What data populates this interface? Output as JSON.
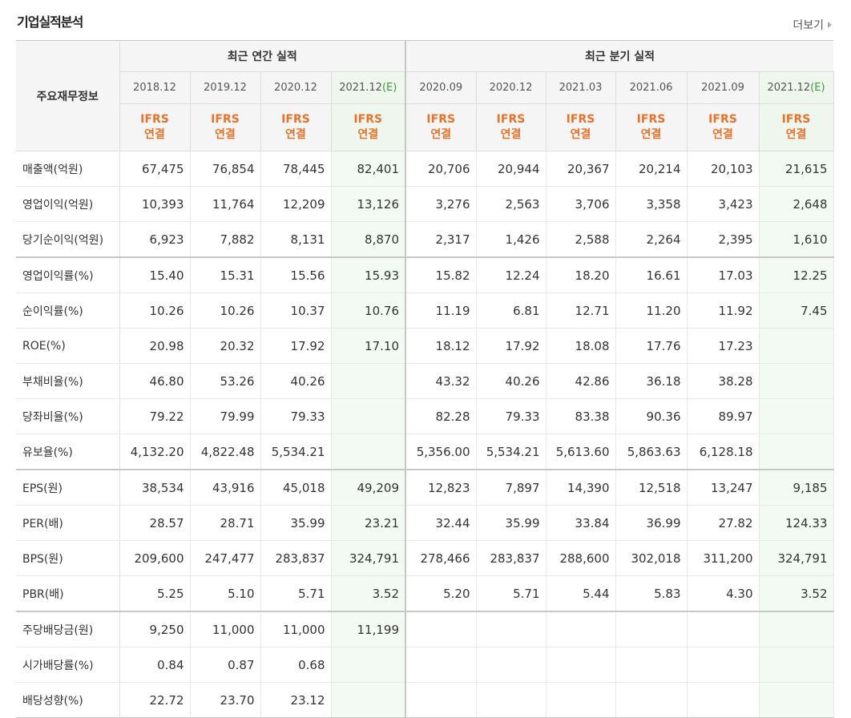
{
  "header": {
    "title": "기업실적분석",
    "more_label": "더보기"
  },
  "table": {
    "corner_label": "주요재무정보",
    "annual_group_label": "최근 연간 실적",
    "quarter_group_label": "최근 분기 실적",
    "columns": [
      {
        "period": "2018.12",
        "est": "",
        "ifrs1": "IFRS",
        "ifrs2": "연결"
      },
      {
        "period": "2019.12",
        "est": "",
        "ifrs1": "IFRS",
        "ifrs2": "연결"
      },
      {
        "period": "2020.12",
        "est": "",
        "ifrs1": "IFRS",
        "ifrs2": "연결"
      },
      {
        "period": "2021.12",
        "est": "(E)",
        "ifrs1": "IFRS",
        "ifrs2": "연결"
      },
      {
        "period": "2020.09",
        "est": "",
        "ifrs1": "IFRS",
        "ifrs2": "연결"
      },
      {
        "period": "2020.12",
        "est": "",
        "ifrs1": "IFRS",
        "ifrs2": "연결"
      },
      {
        "period": "2021.03",
        "est": "",
        "ifrs1": "IFRS",
        "ifrs2": "연결"
      },
      {
        "period": "2021.06",
        "est": "",
        "ifrs1": "IFRS",
        "ifrs2": "연결"
      },
      {
        "period": "2021.09",
        "est": "",
        "ifrs1": "IFRS",
        "ifrs2": "연결"
      },
      {
        "period": "2021.12",
        "est": "(E)",
        "ifrs1": "IFRS",
        "ifrs2": "연결"
      }
    ],
    "rows": [
      {
        "label": "매출액(억원)",
        "values": [
          "67,475",
          "76,854",
          "78,445",
          "82,401",
          "20,706",
          "20,944",
          "20,367",
          "20,214",
          "20,103",
          "21,615"
        ]
      },
      {
        "label": "영업이익(억원)",
        "values": [
          "10,393",
          "11,764",
          "12,209",
          "13,126",
          "3,276",
          "2,563",
          "3,706",
          "3,358",
          "3,423",
          "2,648"
        ]
      },
      {
        "label": "당기순이익(억원)",
        "values": [
          "6,923",
          "7,882",
          "8,131",
          "8,870",
          "2,317",
          "1,426",
          "2,588",
          "2,264",
          "2,395",
          "1,610"
        ]
      },
      {
        "label": "영업이익률(%)",
        "values": [
          "15.40",
          "15.31",
          "15.56",
          "15.93",
          "15.82",
          "12.24",
          "18.20",
          "16.61",
          "17.03",
          "12.25"
        ]
      },
      {
        "label": "순이익률(%)",
        "values": [
          "10.26",
          "10.26",
          "10.37",
          "10.76",
          "11.19",
          "6.81",
          "12.71",
          "11.20",
          "11.92",
          "7.45"
        ]
      },
      {
        "label": "ROE(%)",
        "values": [
          "20.98",
          "20.32",
          "17.92",
          "17.10",
          "18.12",
          "17.92",
          "18.08",
          "17.76",
          "17.23",
          ""
        ]
      },
      {
        "label": "부채비율(%)",
        "values": [
          "46.80",
          "53.26",
          "40.26",
          "",
          "43.32",
          "40.26",
          "42.86",
          "36.18",
          "38.28",
          ""
        ]
      },
      {
        "label": "당좌비율(%)",
        "values": [
          "79.22",
          "79.99",
          "79.33",
          "",
          "82.28",
          "79.33",
          "83.38",
          "90.36",
          "89.97",
          ""
        ]
      },
      {
        "label": "유보율(%)",
        "values": [
          "4,132.20",
          "4,822.48",
          "5,534.21",
          "",
          "5,356.00",
          "5,534.21",
          "5,613.60",
          "5,863.63",
          "6,128.18",
          ""
        ]
      },
      {
        "label": "EPS(원)",
        "values": [
          "38,534",
          "43,916",
          "45,018",
          "49,209",
          "12,823",
          "7,897",
          "14,390",
          "12,518",
          "13,247",
          "9,185"
        ]
      },
      {
        "label": "PER(배)",
        "values": [
          "28.57",
          "28.71",
          "35.99",
          "23.21",
          "32.44",
          "35.99",
          "33.84",
          "36.99",
          "27.82",
          "124.33"
        ]
      },
      {
        "label": "BPS(원)",
        "values": [
          "209,600",
          "247,477",
          "283,837",
          "324,791",
          "278,466",
          "283,837",
          "288,600",
          "302,018",
          "311,200",
          "324,791"
        ]
      },
      {
        "label": "PBR(배)",
        "values": [
          "5.25",
          "5.10",
          "5.71",
          "3.52",
          "5.20",
          "5.71",
          "5.44",
          "5.83",
          "4.30",
          "3.52"
        ]
      },
      {
        "label": "주당배당금(원)",
        "values": [
          "9,250",
          "11,000",
          "11,000",
          "11,199",
          "",
          "",
          "",
          "",
          "",
          ""
        ]
      },
      {
        "label": "시가배당률(%)",
        "values": [
          "0.84",
          "0.87",
          "0.68",
          "",
          "",
          "",
          "",
          "",
          "",
          ""
        ]
      },
      {
        "label": "배당성향(%)",
        "values": [
          "22.72",
          "23.70",
          "23.12",
          "",
          "",
          "",
          "",
          "",
          "",
          ""
        ]
      }
    ]
  }
}
